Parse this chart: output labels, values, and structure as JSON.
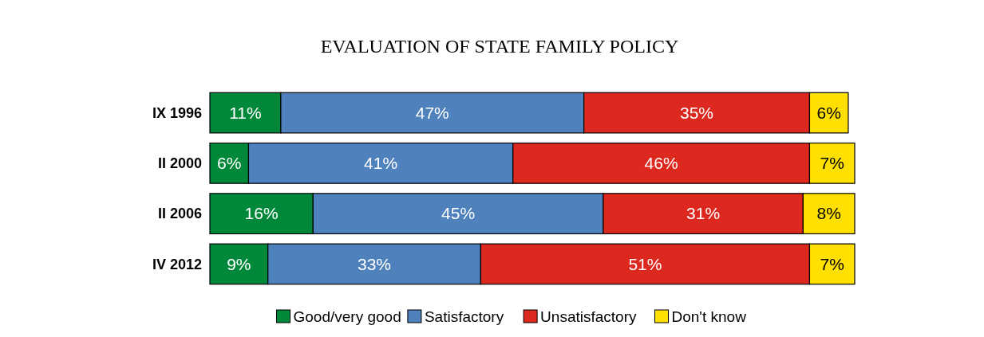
{
  "chart_data": {
    "type": "bar",
    "orientation": "horizontal",
    "stacked": true,
    "title": "EVALUATION OF STATE FAMILY POLICY",
    "categories": [
      "IX 1996",
      "II 2000",
      "II 2006",
      "IV 2012"
    ],
    "legend": "bottom",
    "series": [
      {
        "name": "Good/very good",
        "color": "#00883a",
        "values": [
          11,
          6,
          16,
          9
        ],
        "value_labels": [
          "11%",
          "6%",
          "16%",
          "9%"
        ]
      },
      {
        "name": "Satisfactory",
        "color": "#4f81bd",
        "values": [
          47,
          41,
          45,
          33
        ],
        "value_labels": [
          "47%",
          "41%",
          "45%",
          "33%"
        ]
      },
      {
        "name": "Unsatisfactory",
        "color": "#dc281e",
        "values": [
          35,
          46,
          31,
          51
        ],
        "value_labels": [
          "35%",
          "46%",
          "31%",
          "51%"
        ]
      },
      {
        "name": "Don't know",
        "color": "#ffe000",
        "values": [
          6,
          7,
          8,
          7
        ],
        "value_labels": [
          "6%",
          "7%",
          "8%",
          "7%"
        ]
      }
    ]
  }
}
